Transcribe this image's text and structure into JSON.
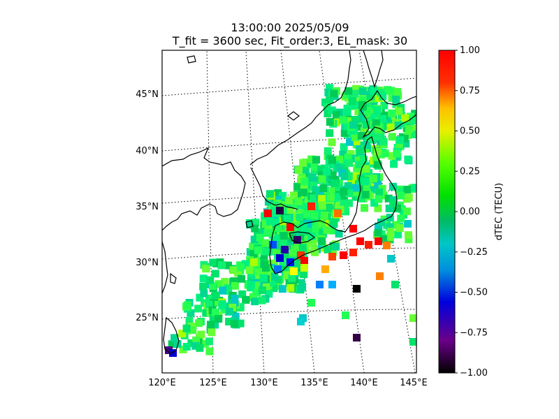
{
  "title": "13:00:00 2025/05/09",
  "subtitle": "T_fit = 3600 sec, Fit_order:3, EL_mask: 30",
  "map": {
    "lon_labels": [
      "120°E",
      "125°E",
      "130°E",
      "135°E",
      "140°E",
      "145°E"
    ],
    "lat_labels": [
      "25°N",
      "30°N",
      "35°N",
      "40°N",
      "45°N"
    ],
    "grid": "dotted graticule"
  },
  "colorbar": {
    "label": "dTEC (TECU)",
    "range": [
      -1.0,
      1.0
    ],
    "ticks": [
      "1.00",
      "0.75",
      "0.50",
      "0.25",
      "0.00",
      "−0.25",
      "−0.50",
      "−0.75",
      "−1.00"
    ],
    "colormap": "nipy_spectral-like (black–purple–blue–cyan–green–yellow–orange–red)"
  }
}
